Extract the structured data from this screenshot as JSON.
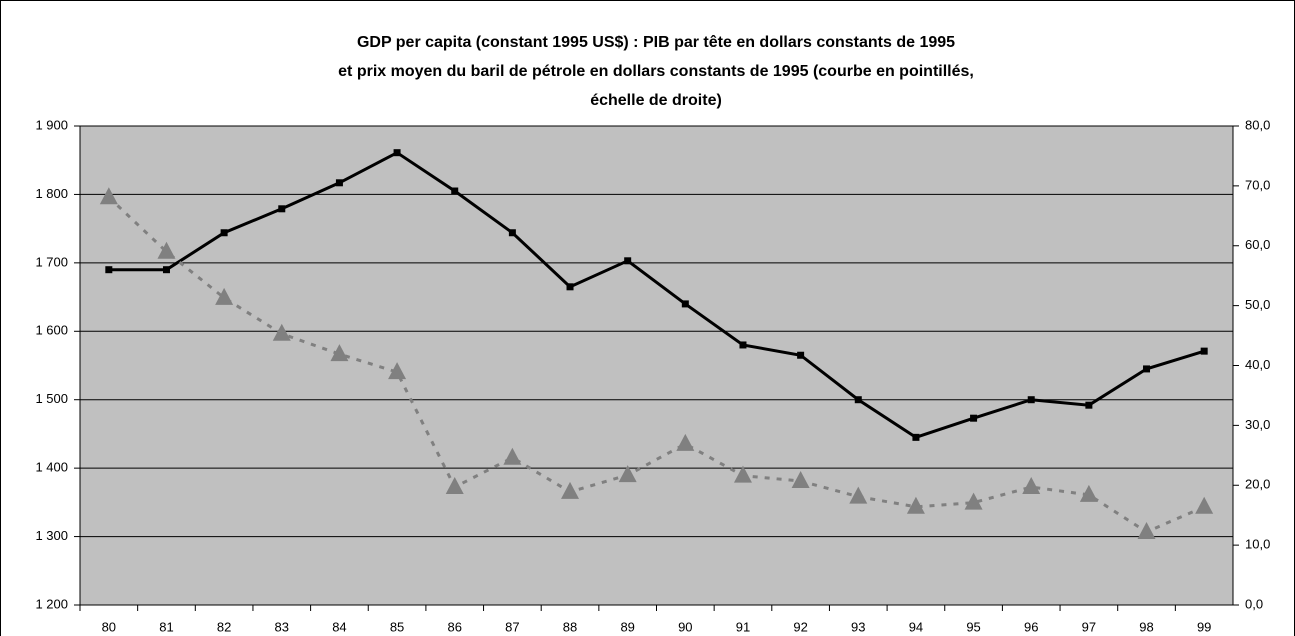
{
  "chart_data": {
    "type": "line",
    "title": [
      "GDP per capita (constant 1995 US$) : PIB par tête en dollars constants de 1995",
      "et prix moyen du baril de pétrole en dollars constants de 1995  (courbe en pointillés,",
      "échelle de droite)"
    ],
    "categories": [
      "80",
      "81",
      "82",
      "83",
      "84",
      "85",
      "86",
      "87",
      "88",
      "89",
      "90",
      "91",
      "92",
      "93",
      "94",
      "95",
      "96",
      "97",
      "98",
      "99"
    ],
    "series": [
      {
        "color": "#000000",
        "marker": "square",
        "dashed": false,
        "values": [
          1690,
          1690,
          1744,
          1779,
          1817,
          1861,
          1805,
          1744,
          1665,
          1703,
          1640,
          1580,
          1565,
          1500,
          1445,
          1473,
          1500,
          1492,
          1545,
          1571
        ]
      },
      {
        "color": "#808080",
        "marker": "triangle",
        "dashed": true,
        "axis": "y2",
        "values": [
          68.1,
          59.0,
          51.3,
          45.3,
          41.9,
          38.9,
          19.7,
          24.6,
          18.9,
          21.7,
          26.9,
          21.6,
          20.7,
          18.1,
          16.4,
          17.1,
          19.7,
          18.4,
          12.2,
          16.4
        ]
      }
    ],
    "ylim": [
      1200,
      1900
    ],
    "yticks": [
      {
        "value": 1200,
        "label": "1 200"
      },
      {
        "value": 1300,
        "label": "1 300"
      },
      {
        "value": 1400,
        "label": "1 400"
      },
      {
        "value": 1500,
        "label": "1 500"
      },
      {
        "value": 1600,
        "label": "1 600"
      },
      {
        "value": 1700,
        "label": "1 700"
      },
      {
        "value": 1800,
        "label": "1 800"
      },
      {
        "value": 1900,
        "label": "1 900"
      }
    ],
    "y2lim": [
      0,
      80
    ],
    "y2ticks": [
      {
        "value": 0,
        "label": "0,0"
      },
      {
        "value": 10,
        "label": "10,0"
      },
      {
        "value": 20,
        "label": "20,0"
      },
      {
        "value": 30,
        "label": "30,0"
      },
      {
        "value": 40,
        "label": "40,0"
      },
      {
        "value": 50,
        "label": "50,0"
      },
      {
        "value": 60,
        "label": "60,0"
      },
      {
        "value": 70,
        "label": "70,0"
      },
      {
        "value": 80,
        "label": "80,0"
      }
    ],
    "grid": true
  }
}
